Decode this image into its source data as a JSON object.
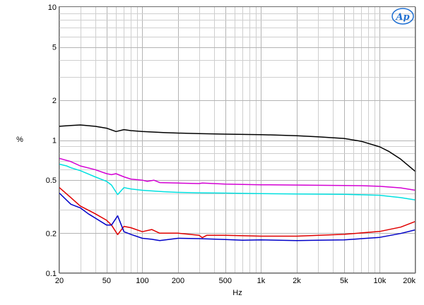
{
  "chart_data": {
    "type": "line",
    "xlabel": "Hz",
    "ylabel": "%",
    "x_scale": "log",
    "y_scale": "log",
    "xlim": [
      20,
      20000
    ],
    "ylim": [
      0.1,
      10
    ],
    "grid": true,
    "logo": {
      "text": "Ap",
      "color": "#1f6fd1"
    },
    "x_ticks": [
      {
        "value": 20,
        "label": "20"
      },
      {
        "value": 50,
        "label": "50"
      },
      {
        "value": 100,
        "label": "100"
      },
      {
        "value": 200,
        "label": "200"
      },
      {
        "value": 500,
        "label": "500"
      },
      {
        "value": 1000,
        "label": "1k"
      },
      {
        "value": 2000,
        "label": "2k"
      },
      {
        "value": 5000,
        "label": "5k"
      },
      {
        "value": 10000,
        "label": "10k"
      },
      {
        "value": 20000,
        "label": "20k"
      }
    ],
    "y_ticks": [
      {
        "value": 0.1,
        "label": "0.1"
      },
      {
        "value": 0.2,
        "label": "0.2"
      },
      {
        "value": 0.5,
        "label": "0.5"
      },
      {
        "value": 1,
        "label": "1"
      },
      {
        "value": 2,
        "label": "2"
      },
      {
        "value": 5,
        "label": "5"
      },
      {
        "value": 10,
        "label": "10"
      }
    ],
    "series": [
      {
        "color": "#000000",
        "points": [
          [
            20,
            1.27
          ],
          [
            25,
            1.29
          ],
          [
            30,
            1.3
          ],
          [
            40,
            1.27
          ],
          [
            50,
            1.23
          ],
          [
            60,
            1.16
          ],
          [
            70,
            1.2
          ],
          [
            80,
            1.18
          ],
          [
            100,
            1.16
          ],
          [
            150,
            1.14
          ],
          [
            200,
            1.13
          ],
          [
            300,
            1.12
          ],
          [
            500,
            1.11
          ],
          [
            1000,
            1.1
          ],
          [
            2000,
            1.08
          ],
          [
            3000,
            1.06
          ],
          [
            5000,
            1.03
          ],
          [
            7000,
            0.98
          ],
          [
            10000,
            0.89
          ],
          [
            12000,
            0.82
          ],
          [
            15000,
            0.72
          ],
          [
            20000,
            0.58
          ]
        ]
      },
      {
        "color": "#d400d4",
        "points": [
          [
            20,
            0.73
          ],
          [
            25,
            0.69
          ],
          [
            30,
            0.64
          ],
          [
            40,
            0.6
          ],
          [
            50,
            0.56
          ],
          [
            55,
            0.55
          ],
          [
            60,
            0.56
          ],
          [
            70,
            0.53
          ],
          [
            80,
            0.51
          ],
          [
            100,
            0.5
          ],
          [
            110,
            0.49
          ],
          [
            125,
            0.5
          ],
          [
            140,
            0.48
          ],
          [
            200,
            0.476
          ],
          [
            300,
            0.472
          ],
          [
            320,
            0.476
          ],
          [
            500,
            0.467
          ],
          [
            1000,
            0.462
          ],
          [
            2000,
            0.46
          ],
          [
            5000,
            0.456
          ],
          [
            7000,
            0.455
          ],
          [
            10000,
            0.45
          ],
          [
            15000,
            0.438
          ],
          [
            20000,
            0.42
          ]
        ]
      },
      {
        "color": "#00e0e0",
        "points": [
          [
            20,
            0.66
          ],
          [
            23,
            0.64
          ],
          [
            25,
            0.62
          ],
          [
            30,
            0.59
          ],
          [
            40,
            0.53
          ],
          [
            50,
            0.49
          ],
          [
            55,
            0.46
          ],
          [
            62,
            0.39
          ],
          [
            70,
            0.44
          ],
          [
            80,
            0.43
          ],
          [
            100,
            0.42
          ],
          [
            150,
            0.41
          ],
          [
            200,
            0.405
          ],
          [
            300,
            0.402
          ],
          [
            500,
            0.4
          ],
          [
            1000,
            0.396
          ],
          [
            2000,
            0.394
          ],
          [
            5000,
            0.392
          ],
          [
            10000,
            0.385
          ],
          [
            15000,
            0.37
          ],
          [
            20000,
            0.355
          ]
        ]
      },
      {
        "color": "#e00000",
        "points": [
          [
            20,
            0.44
          ],
          [
            25,
            0.37
          ],
          [
            30,
            0.32
          ],
          [
            40,
            0.28
          ],
          [
            50,
            0.25
          ],
          [
            55,
            0.23
          ],
          [
            62,
            0.195
          ],
          [
            70,
            0.225
          ],
          [
            80,
            0.22
          ],
          [
            100,
            0.205
          ],
          [
            120,
            0.213
          ],
          [
            140,
            0.2
          ],
          [
            200,
            0.2
          ],
          [
            300,
            0.193
          ],
          [
            320,
            0.185
          ],
          [
            350,
            0.193
          ],
          [
            500,
            0.193
          ],
          [
            1000,
            0.19
          ],
          [
            2000,
            0.19
          ],
          [
            5000,
            0.196
          ],
          [
            10000,
            0.206
          ],
          [
            15000,
            0.222
          ],
          [
            20000,
            0.245
          ]
        ]
      },
      {
        "color": "#0000c8",
        "points": [
          [
            20,
            0.4
          ],
          [
            25,
            0.33
          ],
          [
            30,
            0.31
          ],
          [
            35,
            0.28
          ],
          [
            40,
            0.26
          ],
          [
            50,
            0.23
          ],
          [
            55,
            0.23
          ],
          [
            62,
            0.27
          ],
          [
            70,
            0.205
          ],
          [
            80,
            0.196
          ],
          [
            100,
            0.183
          ],
          [
            120,
            0.18
          ],
          [
            140,
            0.176
          ],
          [
            200,
            0.183
          ],
          [
            300,
            0.182
          ],
          [
            500,
            0.179
          ],
          [
            700,
            0.177
          ],
          [
            1000,
            0.178
          ],
          [
            2000,
            0.176
          ],
          [
            3000,
            0.177
          ],
          [
            5000,
            0.178
          ],
          [
            10000,
            0.186
          ],
          [
            15000,
            0.199
          ],
          [
            20000,
            0.212
          ]
        ]
      }
    ]
  }
}
